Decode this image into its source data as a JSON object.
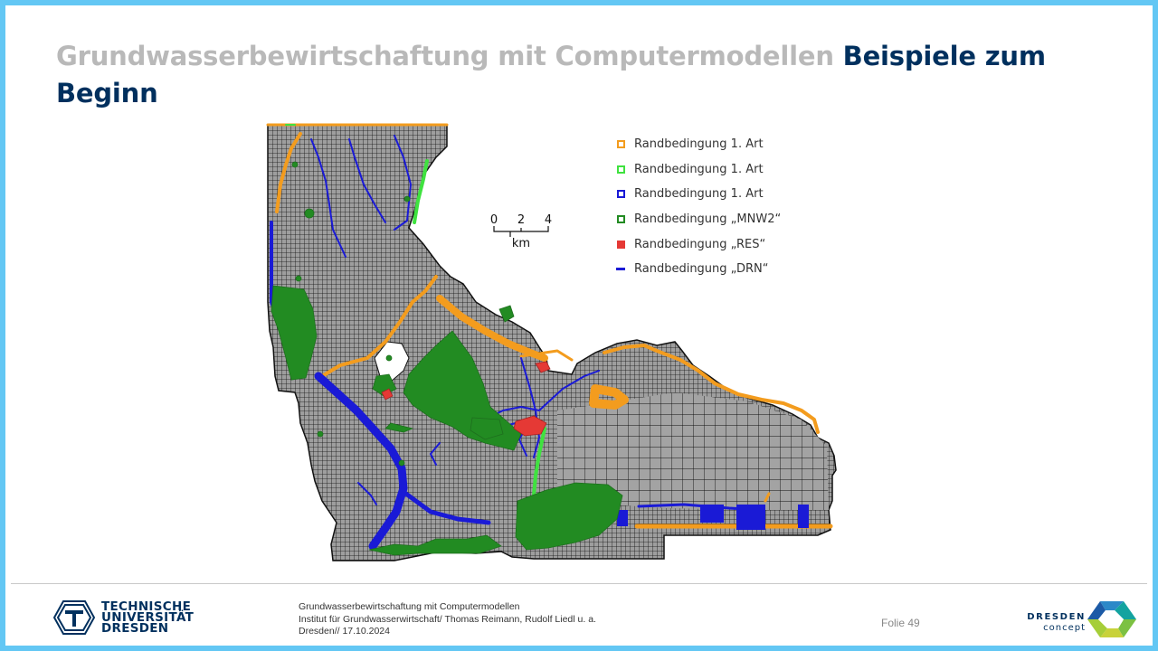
{
  "slide": {
    "title_grey": "Grundwasserbewirtschaftung mit Computermodellen",
    "title_blue": "Beispiele zum Beginn"
  },
  "figure": {
    "scale": {
      "ticks": [
        "0",
        "2",
        "4"
      ],
      "unit": "km"
    },
    "legend": [
      {
        "label": "Randbedingung 1. Art",
        "marker": "square",
        "color": "#f39c1e"
      },
      {
        "label": "Randbedingung 1. Art",
        "marker": "square",
        "color": "#3fe23f"
      },
      {
        "label": "Randbedingung 1. Art",
        "marker": "square",
        "color": "#1a1ad6"
      },
      {
        "label": "Randbedingung „MNW2“",
        "marker": "square",
        "color": "#228b22"
      },
      {
        "label": "Randbedingung „RES“",
        "marker": "filled-square",
        "color": "#e53935"
      },
      {
        "label": "Randbedingung „DRN“",
        "marker": "dash",
        "color": "#1a1ad6"
      }
    ]
  },
  "footer": {
    "university_line1": "TECHNISCHE",
    "university_line2": "UNIVERSITÄT",
    "university_line3": "DRESDEN",
    "info_line1": "Grundwasserbewirtschaftung mit Computermodellen",
    "info_line2": "Institut für Grundwasserwirtschaft/ Thomas Reimann, Rudolf Liedl u. a.",
    "info_line3": "Dresden// 17.10.2024",
    "slide_number": "Folie 49",
    "partner_line1": "DRESDEN",
    "partner_line2": "concept"
  },
  "colors": {
    "frame": "#63c7f4",
    "title_blue": "#00305e",
    "title_grey": "#b9b9b9"
  }
}
